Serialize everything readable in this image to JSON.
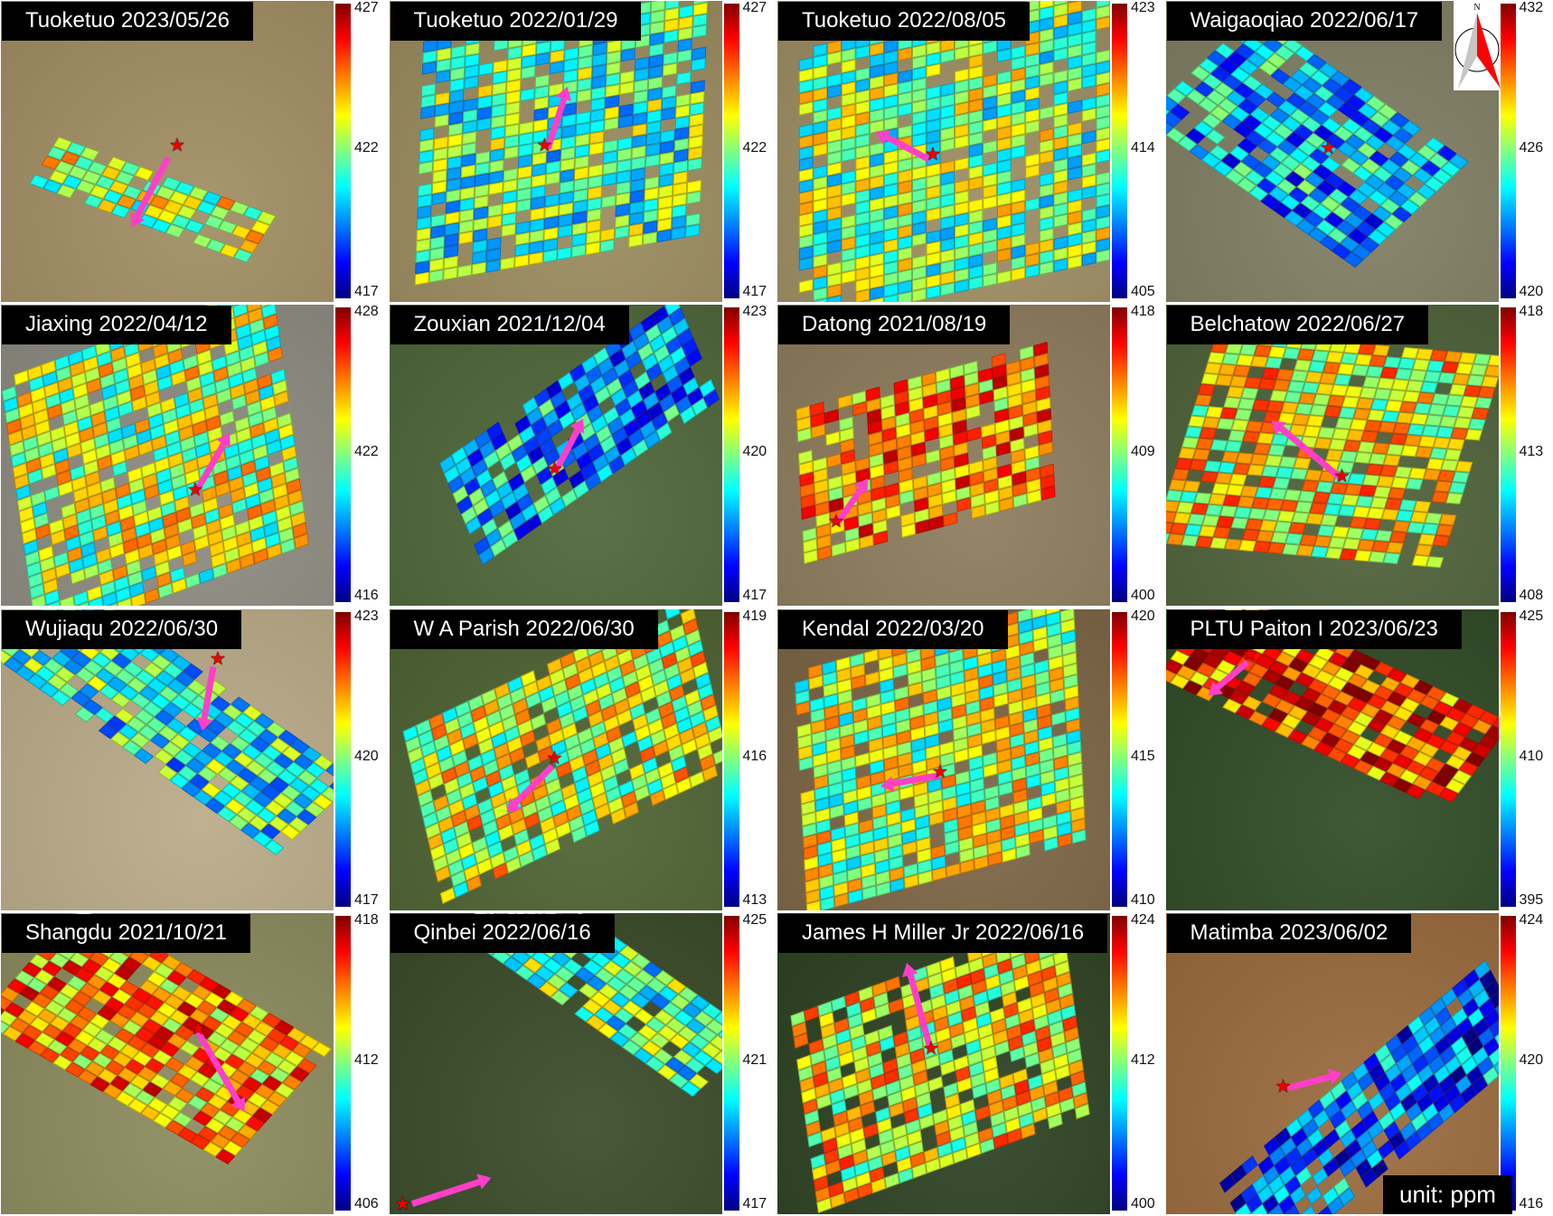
{
  "panels": [
    {
      "title": "Tuoketuo 2023/05/26",
      "colorbar": {
        "max": "427",
        "mid": "422",
        "min": "417"
      }
    },
    {
      "title": "Tuoketuo 2022/01/29",
      "colorbar": {
        "max": "427",
        "mid": "422",
        "min": "417"
      }
    },
    {
      "title": "Tuoketuo 2022/08/05",
      "colorbar": {
        "max": "423",
        "mid": "414",
        "min": "405"
      }
    },
    {
      "title": "Waigaoqiao 2022/06/17",
      "colorbar": {
        "max": "432",
        "mid": "426",
        "min": "420"
      }
    },
    {
      "title": "Jiaxing 2022/04/12",
      "colorbar": {
        "max": "428",
        "mid": "422",
        "min": "416"
      }
    },
    {
      "title": "Zouxian 2021/12/04",
      "colorbar": {
        "max": "423",
        "mid": "420",
        "min": "417"
      }
    },
    {
      "title": "Datong 2021/08/19",
      "colorbar": {
        "max": "418",
        "mid": "409",
        "min": "400"
      }
    },
    {
      "title": "Belchatow 2022/06/27",
      "colorbar": {
        "max": "418",
        "mid": "413",
        "min": "408"
      }
    },
    {
      "title": "Wujiaqu 2022/06/30",
      "colorbar": {
        "max": "423",
        "mid": "420",
        "min": "417"
      }
    },
    {
      "title": "W A Parish 2022/06/30",
      "colorbar": {
        "max": "419",
        "mid": "416",
        "min": "413"
      }
    },
    {
      "title": "Kendal 2022/03/20",
      "colorbar": {
        "max": "420",
        "mid": "415",
        "min": "410"
      }
    },
    {
      "title": "PLTU Paiton I 2023/06/23",
      "colorbar": {
        "max": "425",
        "mid": "410",
        "min": "395"
      }
    },
    {
      "title": "Shangdu 2021/10/21",
      "colorbar": {
        "max": "418",
        "mid": "412",
        "min": "406"
      }
    },
    {
      "title": "Qinbei 2022/06/16",
      "colorbar": {
        "max": "425",
        "mid": "421",
        "min": "417"
      }
    },
    {
      "title": "James H Miller Jr 2022/06/16",
      "colorbar": {
        "max": "424",
        "mid": "412",
        "min": "400"
      }
    },
    {
      "title": "Matimba 2023/06/02",
      "colorbar": {
        "max": "424",
        "mid": "420",
        "min": "416"
      }
    }
  ],
  "compass": {
    "label": "N"
  },
  "unit_label": "unit: ppm",
  "colors": {
    "arrow": "#ff3fc8",
    "star": "#ee0000"
  }
}
